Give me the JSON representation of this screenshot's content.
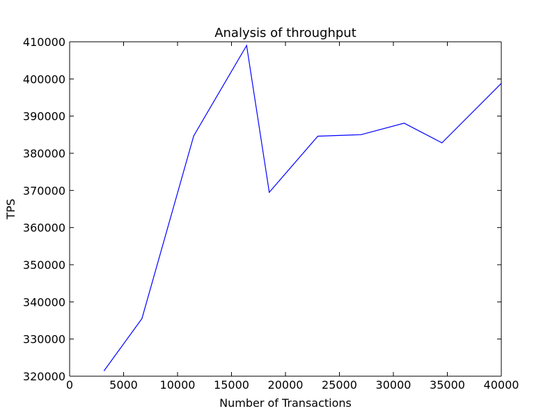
{
  "chart_data": {
    "type": "line",
    "title": "Analysis of throughput",
    "xlabel": "Number of Transactions",
    "ylabel": "TPS",
    "xlim": [
      0,
      40000
    ],
    "ylim": [
      320000,
      410000
    ],
    "xticks": [
      0,
      5000,
      10000,
      15000,
      20000,
      25000,
      30000,
      35000,
      40000
    ],
    "yticks": [
      320000,
      330000,
      340000,
      350000,
      360000,
      370000,
      380000,
      390000,
      400000,
      410000
    ],
    "grid": false,
    "series": [
      {
        "color": "#0000ff",
        "x": [
          3200,
          6700,
          11500,
          16400,
          18500,
          23000,
          27000,
          31000,
          34500,
          40000
        ],
        "y": [
          321500,
          335500,
          384700,
          409000,
          369500,
          384600,
          385000,
          388100,
          382800,
          398800
        ]
      }
    ]
  }
}
